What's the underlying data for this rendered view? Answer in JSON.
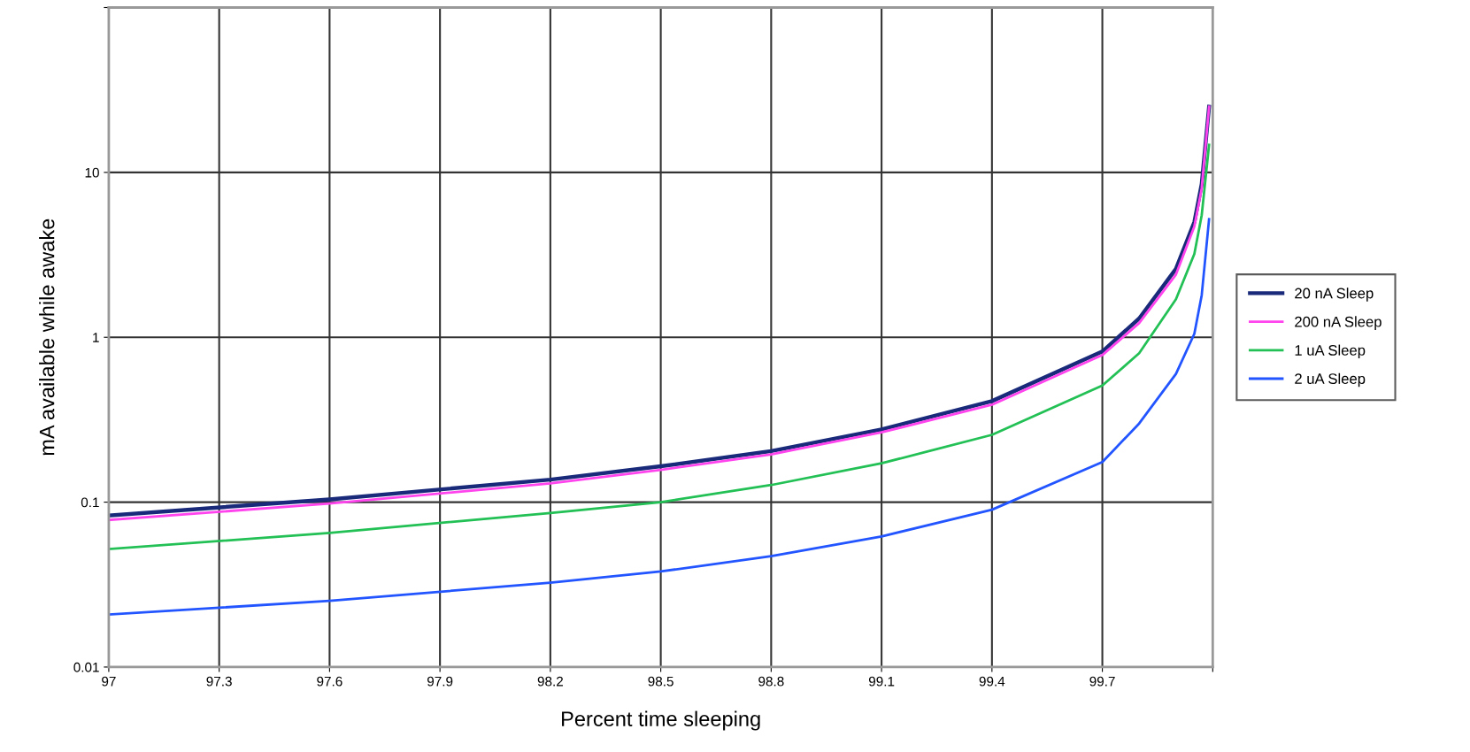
{
  "chart_data": {
    "type": "line",
    "xlabel": "Percent time sleeping",
    "ylabel": "mA available while awake",
    "x": [
      97,
      97.6,
      98.2,
      98.5,
      98.8,
      99.1,
      99.4,
      99.7,
      99.8,
      99.9,
      99.95,
      99.97,
      99.99
    ],
    "series": [
      {
        "name": "20 nA Sleep",
        "color": "#1a2a7a",
        "values": [
          0.083,
          0.104,
          0.137,
          0.165,
          0.204,
          0.276,
          0.41,
          0.82,
          1.3,
          2.6,
          5,
          8.5,
          25
        ]
      },
      {
        "name": "200 nA Sleep",
        "color": "#ff44ee",
        "values": [
          0.078,
          0.098,
          0.13,
          0.157,
          0.195,
          0.265,
          0.39,
          0.78,
          1.22,
          2.4,
          4.7,
          8,
          25
        ]
      },
      {
        "name": "1 uA Sleep",
        "color": "#22c055",
        "values": [
          0.052,
          0.065,
          0.086,
          0.1,
          0.127,
          0.172,
          0.256,
          0.51,
          0.8,
          1.7,
          3.2,
          5.5,
          14.7
        ]
      },
      {
        "name": "2 uA Sleep",
        "color": "#2255ff",
        "values": [
          0.0208,
          0.0252,
          0.0325,
          0.038,
          0.047,
          0.062,
          0.09,
          0.175,
          0.3,
          0.6,
          1.05,
          1.8,
          5.2
        ]
      }
    ],
    "xlim": [
      97,
      100
    ],
    "xticks": [
      97,
      97.3,
      97.6,
      97.9,
      98.2,
      98.5,
      98.8,
      99.1,
      99.4,
      99.7,
      {
        "value": 100,
        "label": null
      }
    ],
    "ylim": [
      0.01,
      100
    ],
    "yticks": [
      0.01,
      0.1,
      1,
      10,
      {
        "value": 100,
        "label": null
      }
    ],
    "log": "y",
    "grid": true,
    "legend": "right",
    "marker": "none",
    "line_style": "solid"
  }
}
